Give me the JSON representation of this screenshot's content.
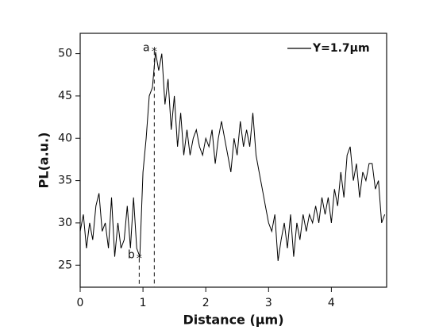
{
  "chart_data": {
    "type": "line",
    "xlabel": "Distance (μm)",
    "ylabel": "PL(a.u.)",
    "x": [
      0,
      0.05,
      0.1,
      0.15,
      0.2,
      0.25,
      0.3,
      0.35,
      0.4,
      0.45,
      0.5,
      0.55,
      0.6,
      0.65,
      0.7,
      0.75,
      0.8,
      0.85,
      0.9,
      0.95,
      1.0,
      1.05,
      1.1,
      1.15,
      1.2,
      1.25,
      1.3,
      1.35,
      1.4,
      1.45,
      1.5,
      1.55,
      1.6,
      1.65,
      1.7,
      1.75,
      1.8,
      1.85,
      1.9,
      1.95,
      2.0,
      2.05,
      2.1,
      2.15,
      2.2,
      2.25,
      2.3,
      2.35,
      2.4,
      2.45,
      2.5,
      2.55,
      2.6,
      2.65,
      2.7,
      2.75,
      2.8,
      2.85,
      2.9,
      2.95,
      3.0,
      3.05,
      3.1,
      3.15,
      3.2,
      3.25,
      3.3,
      3.35,
      3.4,
      3.45,
      3.5,
      3.55,
      3.6,
      3.65,
      3.7,
      3.75,
      3.8,
      3.85,
      3.9,
      3.95,
      4.0,
      4.05,
      4.1,
      4.15,
      4.2,
      4.25,
      4.3,
      4.35,
      4.4,
      4.45,
      4.5,
      4.55,
      4.6,
      4.65,
      4.7,
      4.75,
      4.8,
      4.85
    ],
    "series": [
      {
        "name": "Y=1.7μm",
        "color": "#000000",
        "values": [
          29,
          31,
          27,
          30,
          28,
          32,
          33.5,
          29,
          30,
          27,
          33,
          26,
          30,
          27,
          28,
          32,
          27,
          33,
          27,
          26,
          36,
          40,
          45,
          46,
          50.2,
          48,
          50,
          44,
          47,
          41,
          45,
          39,
          43,
          38,
          41,
          38,
          40,
          41,
          39,
          38,
          40,
          39,
          41,
          37,
          40,
          42,
          40,
          38,
          36,
          40,
          38,
          42,
          39,
          41,
          39,
          43,
          38,
          36,
          34,
          32,
          30,
          29,
          31,
          25.5,
          28,
          30,
          27,
          31,
          26,
          30,
          28,
          31,
          29,
          31,
          30,
          32,
          30,
          33,
          31,
          33,
          30,
          34,
          32,
          36,
          33,
          38,
          39,
          35,
          37,
          33,
          36,
          35,
          37,
          37,
          34,
          35,
          30,
          31
        ]
      }
    ],
    "annotations": [
      {
        "text": "a",
        "x": 1.18,
        "y": 50.3,
        "color": "#e8242b"
      },
      {
        "text": "b",
        "x": 0.94,
        "y": 25.8,
        "color": "#e8242b"
      }
    ],
    "xlim": [
      0,
      4.88
    ],
    "ylim": [
      22.4,
      52.4
    ],
    "xticks": [
      0,
      1,
      2,
      3,
      4
    ],
    "yticks": [
      25,
      30,
      35,
      40,
      45,
      50
    ],
    "legend": "upper right"
  }
}
